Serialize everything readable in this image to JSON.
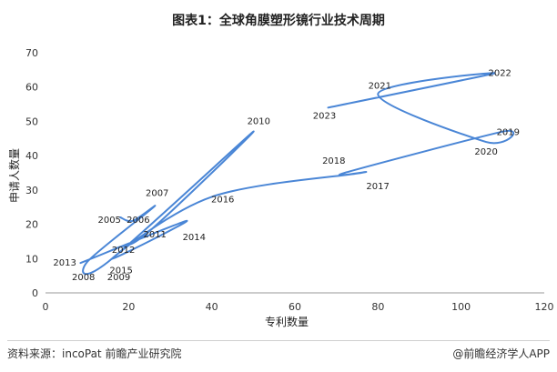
{
  "chart_data": {
    "type": "line",
    "title": "图表1：全球角膜塑形镜行业技术周期",
    "xlabel": "专利数量",
    "ylabel": "申请人数量",
    "xlim": [
      0,
      120
    ],
    "ylim": [
      0,
      70
    ],
    "x_ticks": [
      0,
      20,
      40,
      60,
      80,
      100,
      120
    ],
    "y_ticks": [
      0,
      10,
      20,
      30,
      40,
      50,
      60,
      70
    ],
    "grid": false,
    "line_color": "#4a86d6",
    "points": [
      {
        "year": "2005",
        "x": 18,
        "y": 22
      },
      {
        "year": "2006",
        "x": 21,
        "y": 21
      },
      {
        "year": "2007",
        "x": 26,
        "y": 25
      },
      {
        "year": "2008",
        "x": 10,
        "y": 9
      },
      {
        "year": "2009",
        "x": 15,
        "y": 9
      },
      {
        "year": "2010",
        "x": 50,
        "y": 47
      },
      {
        "year": "2011",
        "x": 25,
        "y": 18
      },
      {
        "year": "2012",
        "x": 17,
        "y": 13
      },
      {
        "year": "2013",
        "x": 9,
        "y": 9
      },
      {
        "year": "2014",
        "x": 34,
        "y": 21
      },
      {
        "year": "2015",
        "x": 16,
        "y": 10
      },
      {
        "year": "2016",
        "x": 40,
        "y": 28
      },
      {
        "year": "2017",
        "x": 76,
        "y": 35
      },
      {
        "year": "2018",
        "x": 72,
        "y": 35
      },
      {
        "year": "2019",
        "x": 110,
        "y": 47
      },
      {
        "year": "2020",
        "x": 106,
        "y": 44
      },
      {
        "year": "2021",
        "x": 80,
        "y": 58
      },
      {
        "year": "2022",
        "x": 108,
        "y": 64
      },
      {
        "year": "2023",
        "x": 68,
        "y": 54
      }
    ]
  },
  "footer": {
    "source": "资料来源：incoPat 前瞻产业研究院",
    "brand": "@前瞻经济学人APP"
  }
}
